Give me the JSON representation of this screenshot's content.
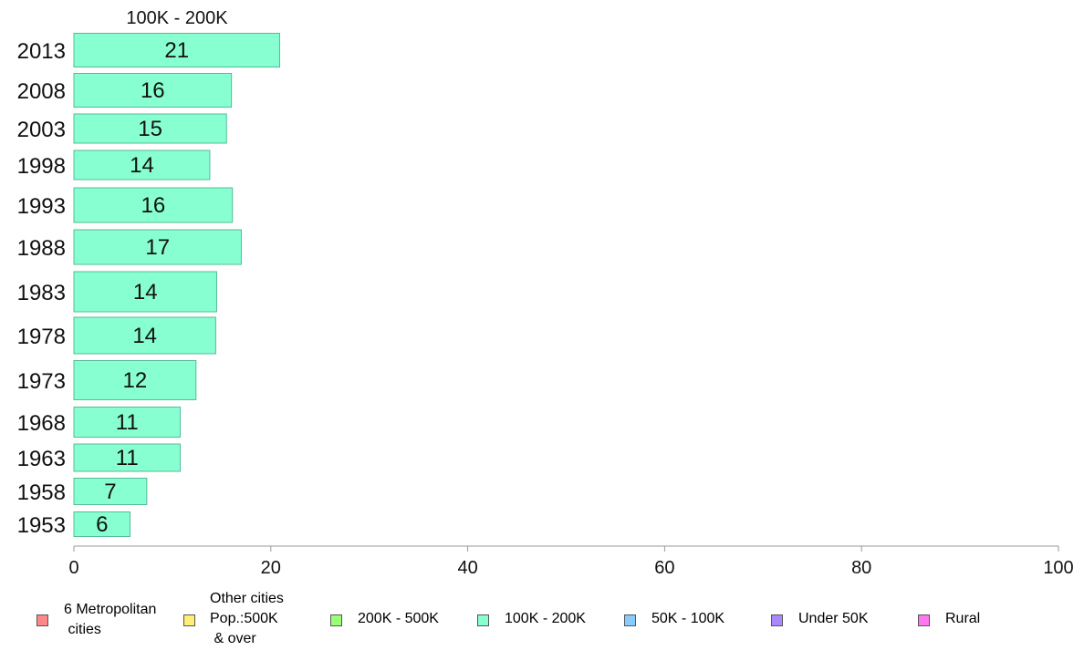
{
  "chart_data": {
    "type": "bar",
    "orientation": "horizontal",
    "title": "100K - 200K",
    "categories": [
      "2013",
      "2008",
      "2003",
      "1998",
      "1993",
      "1988",
      "1983",
      "1978",
      "1973",
      "1968",
      "1963",
      "1958",
      "1953"
    ],
    "values": [
      21,
      16,
      15,
      14,
      16,
      17,
      14,
      14,
      12,
      11,
      11,
      7,
      6
    ],
    "precise_values": [
      20.9,
      16.0,
      15.5,
      13.8,
      16.1,
      17.0,
      14.5,
      14.4,
      12.4,
      10.8,
      10.8,
      7.4,
      5.7
    ],
    "xlim": [
      0,
      100
    ],
    "xticks": [
      "0",
      "20",
      "40",
      "60",
      "80",
      "100"
    ],
    "bar_color": "#88ffd0",
    "bar_border": "#55bb99",
    "grid": false
  },
  "legend": {
    "items": [
      {
        "label": "6 Metropolitan\n cities",
        "color": "#ff8888"
      },
      {
        "label": "Other cities\nPop.:500K\n & over",
        "color": "#ffee77"
      },
      {
        "label": "200K - 500K",
        "color": "#99ff77"
      },
      {
        "label": "100K - 200K",
        "color": "#88ffd0"
      },
      {
        "label": "50K - 100K",
        "color": "#88ccff"
      },
      {
        "label": "Under 50K",
        "color": "#aa88ff"
      },
      {
        "label": "Rural",
        "color": "#ff77ee"
      }
    ]
  }
}
